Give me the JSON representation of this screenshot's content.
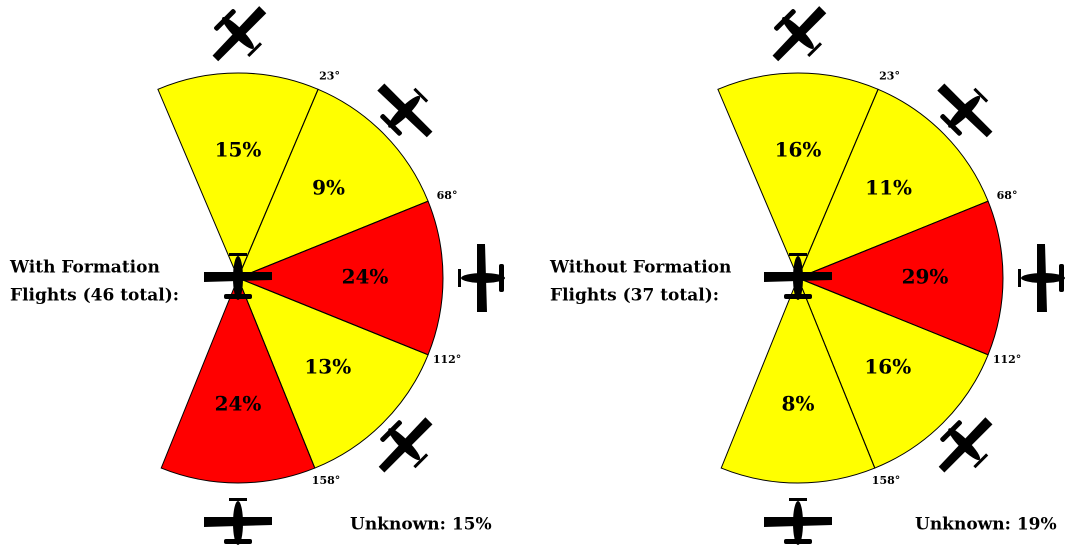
{
  "chart_data": [
    {
      "type": "polar",
      "title": [
        "With Formation",
        "Flights (46 total):"
      ],
      "ticks": [
        {
          "value": 23,
          "label": "23°"
        },
        {
          "value": 68,
          "label": "68°"
        },
        {
          "value": 112,
          "label": "112°"
        },
        {
          "value": 158,
          "label": "158°"
        }
      ],
      "values": [
        15,
        9,
        24,
        13,
        24
      ],
      "value_labels": [
        "15%",
        "9%",
        "24%",
        "13%",
        "24%"
      ],
      "colors": [
        "#ffff00",
        "#ffff00",
        "#ff0000",
        "#ffff00",
        "#ff0000"
      ],
      "annotation": "Unknown: 15%"
    },
    {
      "type": "polar",
      "title": [
        "Without Formation",
        "Flights (37 total):"
      ],
      "ticks": [
        {
          "value": 23,
          "label": "23°"
        },
        {
          "value": 68,
          "label": "68°"
        },
        {
          "value": 112,
          "label": "112°"
        },
        {
          "value": 158,
          "label": "158°"
        }
      ],
      "values": [
        16,
        11,
        29,
        16,
        8
      ],
      "value_labels": [
        "16%",
        "11%",
        "29%",
        "16%",
        "8%"
      ],
      "colors": [
        "#ffff00",
        "#ffff00",
        "#ff0000",
        "#ffff00",
        "#ffff00"
      ],
      "annotation": "Unknown: 19%"
    }
  ]
}
